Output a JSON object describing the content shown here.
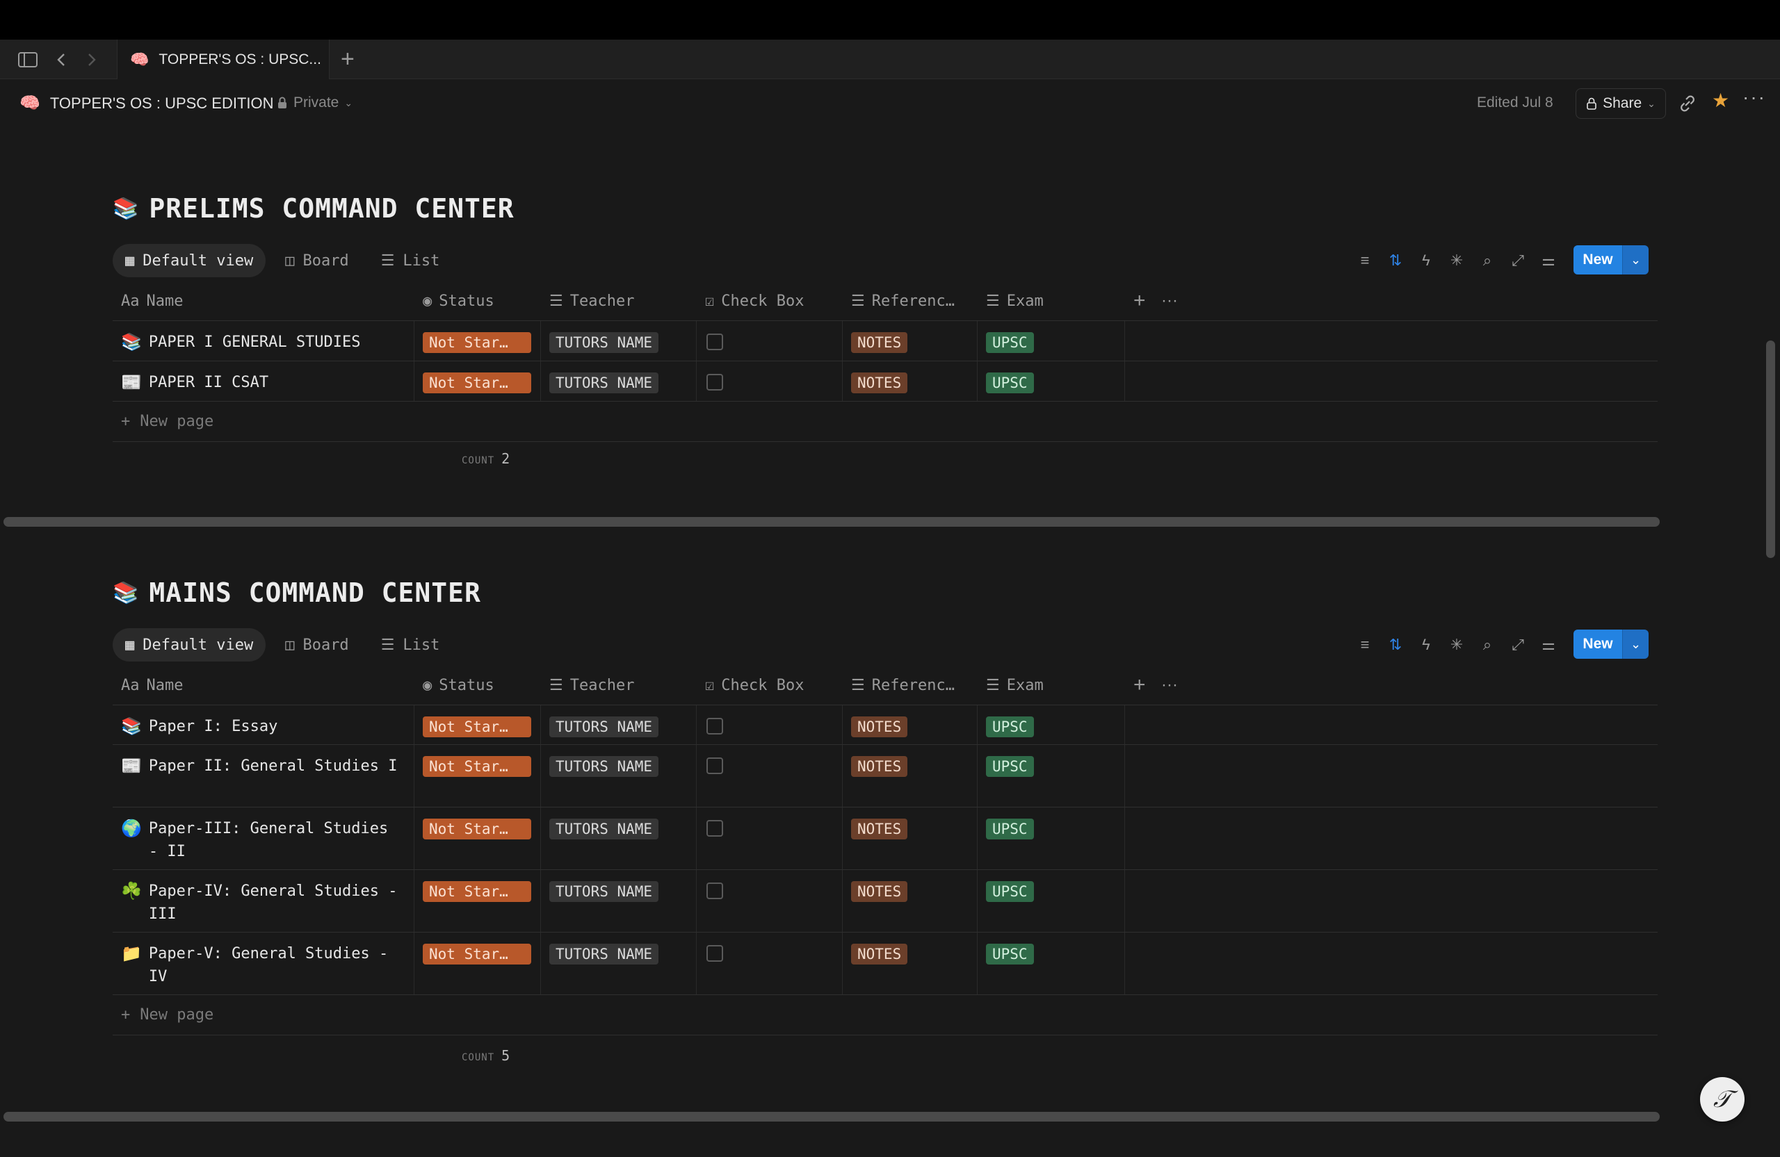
{
  "browser": {
    "tab_title": "TOPPER'S OS : UPSC...",
    "tab_emoji": "🧠",
    "new_tab_symbol": "+"
  },
  "header": {
    "page_emoji": "🧠",
    "page_title": "TOPPER'S OS : UPSC EDITION",
    "privacy": "Private",
    "edited": "Edited Jul 8",
    "share_label": "Share"
  },
  "prelims": {
    "emoji": "📚",
    "title": "PRELIMS COMMAND CENTER",
    "views": [
      "Default view",
      "Board",
      "List"
    ],
    "new_label": "New",
    "columns": [
      "Name",
      "Status",
      "Teacher",
      "Check Box",
      "Referenc…",
      "Exam"
    ],
    "rows": [
      {
        "emoji": "📚",
        "name": "PAPER I GENERAL STUDIES",
        "status": "Not Star…",
        "teacher": "TUTORS NAME",
        "ref": "NOTES",
        "exam": "UPSC"
      },
      {
        "emoji": "📰",
        "name": "PAPER II CSAT",
        "status": "Not Star…",
        "teacher": "TUTORS NAME",
        "ref": "NOTES",
        "exam": "UPSC"
      }
    ],
    "new_page": "New page",
    "count_label": "COUNT",
    "count_value": "2"
  },
  "mains": {
    "emoji": "📚",
    "title": "MAINS COMMAND CENTER",
    "views": [
      "Default view",
      "Board",
      "List"
    ],
    "new_label": "New",
    "columns": [
      "Name",
      "Status",
      "Teacher",
      "Check Box",
      "Referenc…",
      "Exam"
    ],
    "rows": [
      {
        "emoji": "📚",
        "name": "Paper I: Essay",
        "status": "Not Star…",
        "teacher": "TUTORS NAME",
        "ref": "NOTES",
        "exam": "UPSC"
      },
      {
        "emoji": "📰",
        "name": "Paper II: General Studies I",
        "status": "Not Star…",
        "teacher": "TUTORS NAME",
        "ref": "NOTES",
        "exam": "UPSC"
      },
      {
        "emoji": "🌍",
        "name": "Paper-III: General Studies - II",
        "status": "Not Star…",
        "teacher": "TUTORS NAME",
        "ref": "NOTES",
        "exam": "UPSC"
      },
      {
        "emoji": "☘️",
        "name": "Paper-IV: General Studies - III",
        "status": "Not Star…",
        "teacher": "TUTORS NAME",
        "ref": "NOTES",
        "exam": "UPSC"
      },
      {
        "emoji": "📁",
        "name": "Paper-V: General Studies - IV",
        "status": "Not Star…",
        "teacher": "TUTORS NAME",
        "ref": "NOTES",
        "exam": "UPSC"
      }
    ],
    "new_page": "New page",
    "count_label": "COUNT",
    "count_value": "5"
  },
  "colors": {
    "status_tag": "#b8582a",
    "reference_tag": "#6b3f2a",
    "exam_tag": "#2f6a48",
    "accent": "#2383e2",
    "favorite_star": "#e8a33a"
  }
}
